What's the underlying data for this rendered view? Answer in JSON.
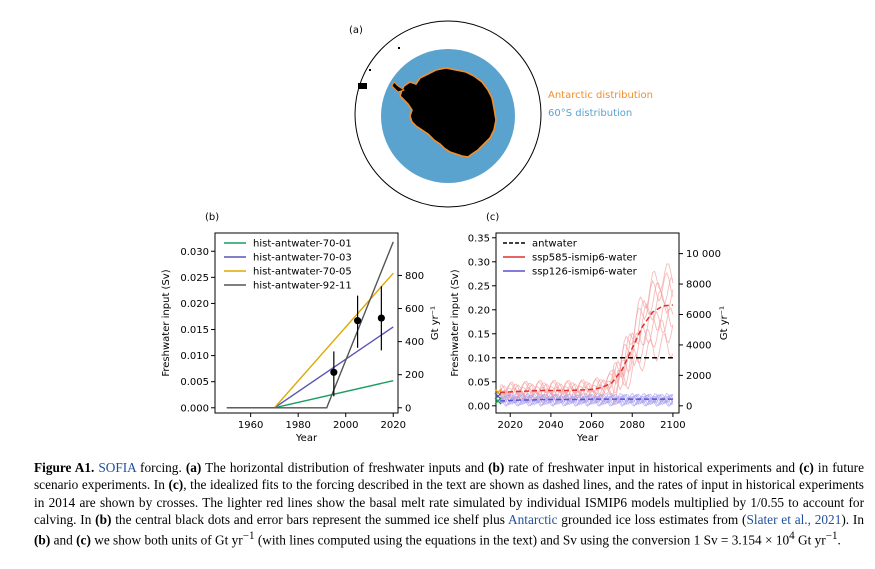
{
  "panel_a": {
    "label": "(a)",
    "legend": [
      {
        "text": "Antarctic distribution",
        "color": "#f28e2b"
      },
      {
        "text": "60°S distribution",
        "color": "#5ba3cf"
      }
    ]
  },
  "chart_data": [
    {
      "type": "line",
      "label": "(b)",
      "xlabel": "Year",
      "ylabel": "Freshwater input (Sv)",
      "ylabel_right": "Gt yr⁻¹",
      "xlim": [
        1945,
        2022
      ],
      "ylim": [
        -0.001,
        0.0335
      ],
      "xticks": [
        1960,
        1980,
        2000,
        2020
      ],
      "yticks": [
        "0.000",
        "0.005",
        "0.010",
        "0.015",
        "0.020",
        "0.025",
        "0.030"
      ],
      "yticks_right": [
        "0",
        "200",
        "400",
        "600",
        "800"
      ],
      "series": [
        {
          "name": "hist-antwater-70-01",
          "color": "#1a9e5f",
          "x": [
            1950,
            1970,
            2020
          ],
          "y": [
            0,
            0,
            0.0052
          ]
        },
        {
          "name": "hist-antwater-70-03",
          "color": "#5a55b5",
          "x": [
            1950,
            1970,
            2020
          ],
          "y": [
            0,
            0,
            0.0155
          ]
        },
        {
          "name": "hist-antwater-70-05",
          "color": "#e0a800",
          "x": [
            1950,
            1970,
            2020
          ],
          "y": [
            0,
            0,
            0.0258
          ]
        },
        {
          "name": "hist-antwater-92-11",
          "color": "#555555",
          "x": [
            1950,
            1992,
            2020
          ],
          "y": [
            0,
            0,
            0.0318
          ]
        }
      ],
      "points": [
        {
          "x": 1995,
          "y": 0.0068,
          "lo": 0.0022,
          "hi": 0.0108
        },
        {
          "x": 2005,
          "y": 0.0167,
          "lo": 0.0115,
          "hi": 0.0215
        },
        {
          "x": 2015,
          "y": 0.0172,
          "lo": 0.011,
          "hi": 0.0233
        }
      ]
    },
    {
      "type": "line",
      "label": "(c)",
      "xlabel": "Year",
      "ylabel": "Freshwater input (Sv)",
      "ylabel_right": "Gt yr⁻¹",
      "xlim": [
        2013,
        2103
      ],
      "ylim": [
        -0.015,
        0.36
      ],
      "xticks": [
        2020,
        2040,
        2060,
        2080,
        2100
      ],
      "yticks": [
        "0.00",
        "0.05",
        "0.10",
        "0.15",
        "0.20",
        "0.25",
        "0.30",
        "0.35"
      ],
      "yticks_right": [
        "0",
        "2000",
        "4000",
        "6000",
        "8000",
        "10 000"
      ],
      "series": [
        {
          "name": "antwater",
          "color": "#000000",
          "style": "dashed",
          "x": [
            2015,
            2100
          ],
          "y": [
            0.1,
            0.1
          ]
        },
        {
          "name": "ssp585-ismip6-water",
          "color": "#e03030",
          "x": [
            2015,
            2020,
            2025,
            2030,
            2035,
            2040,
            2045,
            2050,
            2055,
            2060,
            2065,
            2070,
            2075,
            2080,
            2085,
            2090,
            2095,
            2100
          ],
          "y": [
            0.028,
            0.029,
            0.03,
            0.031,
            0.032,
            0.032,
            0.032,
            0.032,
            0.033,
            0.034,
            0.038,
            0.048,
            0.075,
            0.12,
            0.165,
            0.195,
            0.208,
            0.21
          ]
        },
        {
          "name": "ssp126-ismip6-water",
          "color": "#5b4fd6",
          "x": [
            2015,
            2020,
            2025,
            2030,
            2035,
            2040,
            2045,
            2050,
            2055,
            2060,
            2065,
            2070,
            2075,
            2080,
            2085,
            2090,
            2095,
            2100
          ],
          "y": [
            0.01,
            0.011,
            0.012,
            0.012,
            0.013,
            0.013,
            0.013,
            0.013,
            0.013,
            0.014,
            0.014,
            0.014,
            0.014,
            0.014,
            0.014,
            0.014,
            0.014,
            0.014
          ]
        }
      ],
      "crosses": [
        {
          "x": 2014,
          "y": 0.028,
          "color": "#e0a800"
        },
        {
          "x": 2014,
          "y": 0.02,
          "color": "#5a55b5"
        },
        {
          "x": 2014,
          "y": 0.01,
          "color": "#1a9e5f"
        }
      ]
    }
  ],
  "caption": {
    "figure_label": "Figure A1.",
    "part1": " forcing. ",
    "sofia": "SOFIA",
    "a": "(a)",
    "t1": " The horizontal distribution of freshwater inputs and ",
    "b": "(b)",
    "t2": " rate of freshwater input in historical experiments and ",
    "c": "(c)",
    "t3": " in future scenario experiments. In ",
    "c2": "(c)",
    "t4": ", the idealized fits to the forcing described in the text are shown as dashed lines, and the rates of input in historical experiments in 2014 are shown by crosses. The lighter red lines show the basal melt rate simulated by individual ISMIP6 models multiplied by 1/0.55 to account for calving. In ",
    "b2": "(b)",
    "t5": " the central black dots and error bars represent the summed ice shelf plus ",
    "antarctic": "Antarctic",
    "t6": " grounded ice loss estimates from (",
    "slater": "Slater et al., 2021",
    "t7": "). In ",
    "b3": "(b)",
    "t8": " and ",
    "c3": "(c)",
    "t9": " we show both units of Gt yr",
    "sup1": "−1",
    "t10": " (with lines computed using the equations in the text) and Sv using the conversion 1 Sv = 3.154 × 10",
    "sup2": "4",
    "t11": " Gt yr",
    "sup3": "−1",
    "t12": "."
  }
}
